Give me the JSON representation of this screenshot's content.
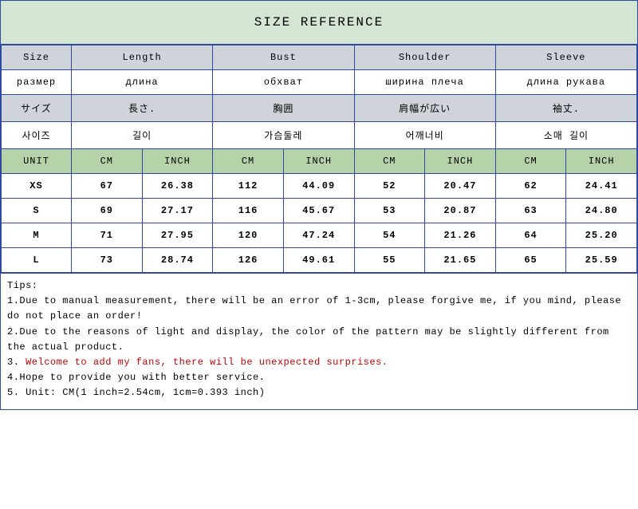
{
  "title": "SIZE REFERENCE",
  "colors": {
    "border": "#2e4a9e",
    "title_bg": "#d4e5d4",
    "header_gray": "#cfd4da",
    "unit_green": "#b6d2a9",
    "tip_red": "#c00000",
    "white": "#ffffff"
  },
  "headers": {
    "en": {
      "size": "Size",
      "length": "Length",
      "bust": "Bust",
      "shoulder": "Shoulder",
      "sleeve": "Sleeve"
    },
    "ru": {
      "size": "размер",
      "length": "длина",
      "bust": "обхват",
      "shoulder": "ширина плеча",
      "sleeve": "длина рукава"
    },
    "jp": {
      "size": "サイズ",
      "length": "長さ.",
      "bust": "胸囲",
      "shoulder": "肩幅が広い",
      "sleeve": "袖丈."
    },
    "kr": {
      "size": "사이즈",
      "length": "길이",
      "bust": "가슴둘레",
      "shoulder": "어깨너비",
      "sleeve": "소매 길이"
    }
  },
  "unit_row": {
    "label": "UNIT",
    "cm": "CM",
    "inch": "INCH"
  },
  "columns": [
    "size",
    "length_cm",
    "length_in",
    "bust_cm",
    "bust_in",
    "shoulder_cm",
    "shoulder_in",
    "sleeve_cm",
    "sleeve_in"
  ],
  "rows": [
    {
      "size": "XS",
      "length_cm": "67",
      "length_in": "26.38",
      "bust_cm": "112",
      "bust_in": "44.09",
      "shoulder_cm": "52",
      "shoulder_in": "20.47",
      "sleeve_cm": "62",
      "sleeve_in": "24.41"
    },
    {
      "size": "S",
      "length_cm": "69",
      "length_in": "27.17",
      "bust_cm": "116",
      "bust_in": "45.67",
      "shoulder_cm": "53",
      "shoulder_in": "20.87",
      "sleeve_cm": "63",
      "sleeve_in": "24.80"
    },
    {
      "size": "M",
      "length_cm": "71",
      "length_in": "27.95",
      "bust_cm": "120",
      "bust_in": "47.24",
      "shoulder_cm": "54",
      "shoulder_in": "21.26",
      "sleeve_cm": "64",
      "sleeve_in": "25.20"
    },
    {
      "size": "L",
      "length_cm": "73",
      "length_in": "28.74",
      "bust_cm": "126",
      "bust_in": "49.61",
      "shoulder_cm": "55",
      "shoulder_in": "21.65",
      "sleeve_cm": "65",
      "sleeve_in": "25.59"
    }
  ],
  "tips": {
    "label": "Tips:",
    "t1": "1.Due to manual measurement, there will be an error of 1-3cm, please forgive me, if you mind, please do not place an order!",
    "t2": "2.Due to the reasons of light and display, the color of the pattern may be slightly different from the actual product.",
    "t3_prefix": "3. ",
    "t3_red": "Welcome to add my fans, there will be unexpected surprises.",
    "t4": "4.Hope to provide you with better service.",
    "t5": "5. Unit: CM(1 inch=2.54cm, 1cm=0.393 inch)"
  }
}
